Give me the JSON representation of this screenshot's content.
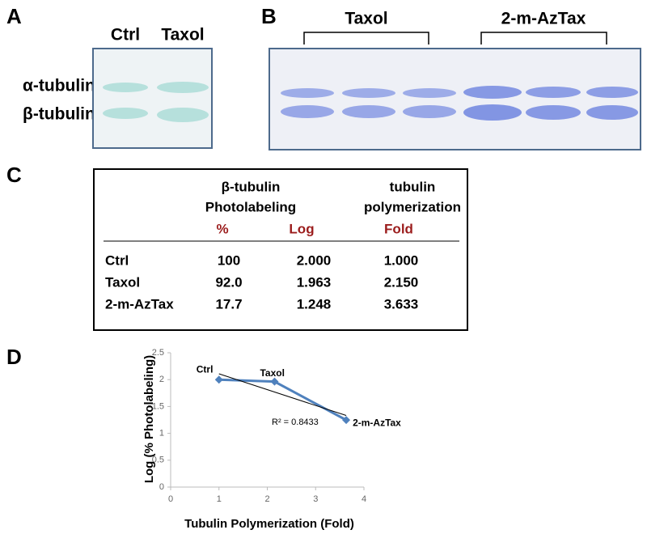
{
  "panels": {
    "a": {
      "label": "A",
      "columns": [
        "Ctrl",
        "Taxol"
      ],
      "rows": [
        "α-tubulin",
        "β-tubulin"
      ]
    },
    "b": {
      "label": "B",
      "groups": [
        "Taxol",
        "2-m-AzTax"
      ]
    },
    "c": {
      "label": "C",
      "header": {
        "col1": [
          "β-tubulin",
          "Photolabeling"
        ],
        "col3": [
          "tubulin",
          "polymerization"
        ],
        "units": [
          "%",
          "Log",
          "Fold"
        ]
      },
      "rows": [
        [
          "Ctrl",
          "100",
          "2.000",
          "1.000"
        ],
        [
          "Taxol",
          "92.0",
          "1.963",
          "2.150"
        ],
        [
          "2-m-AzTax",
          "17.7",
          "1.248",
          "3.633"
        ]
      ]
    }
  },
  "chart_data": {
    "type": "line",
    "panel_label": "D",
    "x_label": "Tubulin Polymerization (Fold)",
    "y_label": "Log (% Photolabeling)",
    "x": [
      1,
      2.15,
      3.633
    ],
    "series": [
      {
        "color": "#4f81bd",
        "values": [
          2.0,
          1.963,
          1.248
        ]
      }
    ],
    "point_labels": [
      "Ctrl",
      "Taxol",
      "2-m-AzTax"
    ],
    "trendline": true,
    "annotation": "R² = 0.8433",
    "xlim": [
      0,
      4
    ],
    "xticks": [
      0,
      1,
      2,
      3,
      4
    ],
    "ylim": [
      0,
      2.5
    ],
    "yticks": [
      0,
      0.5,
      1,
      1.5,
      2,
      2.5
    ],
    "grid": false
  }
}
